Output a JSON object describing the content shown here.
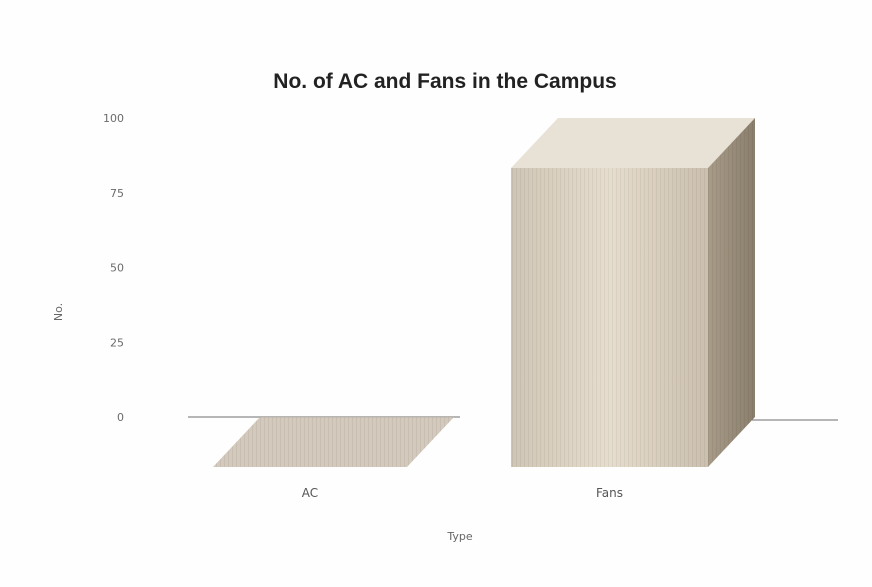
{
  "chart_data": {
    "type": "bar",
    "title": "No. of AC and Fans in the Campus",
    "xlabel": "Type",
    "ylabel": "No.",
    "categories": [
      "AC",
      "Fans"
    ],
    "values": [
      0,
      100
    ],
    "ylim": [
      0,
      100
    ],
    "yticks": [
      0,
      25,
      50,
      75,
      100
    ],
    "grid": false,
    "legend": "none",
    "style": "3d",
    "colors": {
      "bar_front": "#d8cfc0",
      "bar_top": "#e8e1d6",
      "bar_side": "#9b8f7d",
      "floor": "#cbbfb0",
      "baseline": "#888888"
    }
  }
}
